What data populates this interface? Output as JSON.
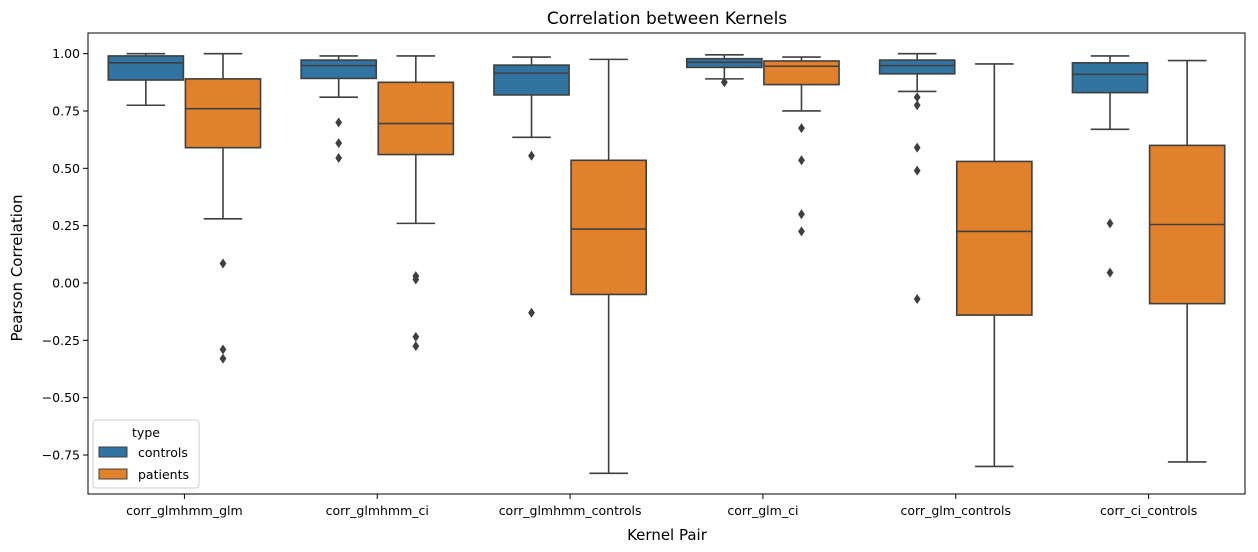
{
  "chart_data": {
    "type": "box",
    "title": "Correlation between Kernels",
    "xlabel": "Kernel Pair",
    "ylabel": "Pearson Correlation",
    "ylim": [
      -0.92,
      1.09
    ],
    "yticks": [
      -0.75,
      -0.5,
      -0.25,
      0.0,
      0.25,
      0.5,
      0.75,
      1.0
    ],
    "ytick_labels": [
      "−0.75",
      "−0.50",
      "−0.25",
      "0.00",
      "0.25",
      "0.50",
      "0.75",
      "1.00"
    ],
    "categories": [
      "corr_glmhmm_glm",
      "corr_glmhmm_ci",
      "corr_glmhmm_controls",
      "corr_glm_ci",
      "corr_glm_controls",
      "corr_ci_controls"
    ],
    "legend": {
      "title": "type",
      "position": "lower-left"
    },
    "series": [
      {
        "name": "controls",
        "color": "#3274a1",
        "boxes": [
          {
            "whisker_low": 0.775,
            "q1": 0.885,
            "median": 0.96,
            "q3": 0.99,
            "whisker_high": 1.0,
            "outliers": []
          },
          {
            "whisker_low": 0.81,
            "q1": 0.892,
            "median": 0.948,
            "q3": 0.972,
            "whisker_high": 0.99,
            "outliers": [
              0.7,
              0.61,
              0.545
            ]
          },
          {
            "whisker_low": 0.635,
            "q1": 0.82,
            "median": 0.915,
            "q3": 0.95,
            "whisker_high": 0.985,
            "outliers": [
              0.555,
              -0.13
            ]
          },
          {
            "whisker_low": 0.89,
            "q1": 0.94,
            "median": 0.962,
            "q3": 0.978,
            "whisker_high": 0.995,
            "outliers": [
              0.875
            ]
          },
          {
            "whisker_low": 0.835,
            "q1": 0.912,
            "median": 0.948,
            "q3": 0.972,
            "whisker_high": 1.0,
            "outliers": [
              0.81,
              0.775,
              0.59,
              0.49,
              -0.07
            ]
          },
          {
            "whisker_low": 0.67,
            "q1": 0.83,
            "median": 0.91,
            "q3": 0.96,
            "whisker_high": 0.99,
            "outliers": [
              0.26,
              0.045
            ]
          }
        ]
      },
      {
        "name": "patients",
        "color": "#e1812c",
        "boxes": [
          {
            "whisker_low": 0.28,
            "q1": 0.59,
            "median": 0.76,
            "q3": 0.89,
            "whisker_high": 1.0,
            "outliers": [
              0.085,
              -0.29,
              -0.33
            ]
          },
          {
            "whisker_low": 0.26,
            "q1": 0.56,
            "median": 0.695,
            "q3": 0.875,
            "whisker_high": 0.99,
            "outliers": [
              0.03,
              0.015,
              -0.235,
              -0.275
            ]
          },
          {
            "whisker_low": -0.83,
            "q1": -0.05,
            "median": 0.235,
            "q3": 0.535,
            "whisker_high": 0.975,
            "outliers": []
          },
          {
            "whisker_low": 0.75,
            "q1": 0.865,
            "median": 0.945,
            "q3": 0.968,
            "whisker_high": 0.985,
            "outliers": [
              0.675,
              0.535,
              0.3,
              0.225
            ]
          },
          {
            "whisker_low": -0.8,
            "q1": -0.14,
            "median": 0.225,
            "q3": 0.53,
            "whisker_high": 0.955,
            "outliers": []
          },
          {
            "whisker_low": -0.78,
            "q1": -0.09,
            "median": 0.255,
            "q3": 0.6,
            "whisker_high": 0.97,
            "outliers": []
          }
        ]
      }
    ]
  }
}
